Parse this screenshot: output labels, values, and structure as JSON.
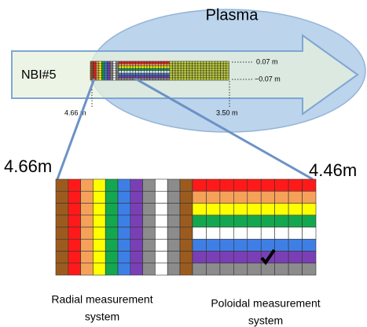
{
  "plasma_label": "Plasma",
  "beam_label": "NBI#5",
  "z_top_label": "0.07 m",
  "z_bottom_label": "−0.07 m",
  "r_start_label": "4.66 m",
  "r_end_label": "3.50 m",
  "zoom_left_label": "4.66m",
  "zoom_right_label": "4.46m",
  "radial_system": {
    "lines": [
      "Radial measurement",
      "system"
    ]
  },
  "poloidal_system": {
    "lines": [
      "Poloidal measurement",
      "system"
    ]
  }
}
